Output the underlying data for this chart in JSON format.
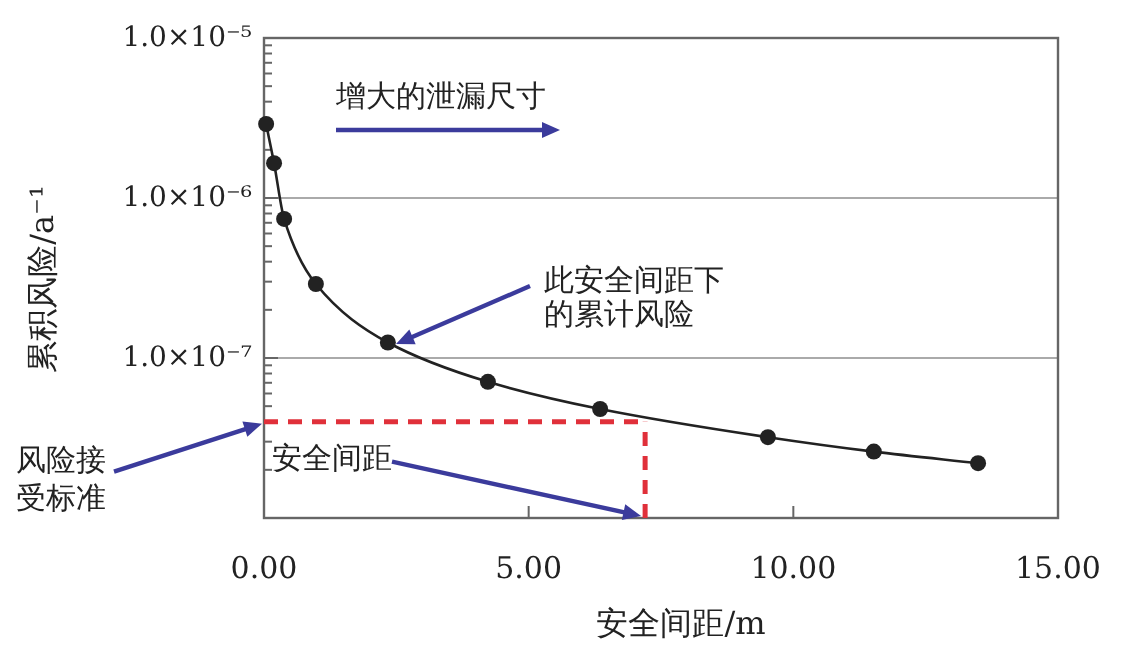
{
  "chart_data": {
    "type": "line",
    "xlabel": "安全间距/m",
    "ylabel": "累积风险/a⁻¹",
    "log": "y",
    "xlim": [
      0,
      15
    ],
    "ylim": [
      1e-08,
      1e-05
    ],
    "xticks": [
      {
        "value": 0,
        "label": "0.00"
      },
      {
        "value": 5,
        "label": "5.00"
      },
      {
        "value": 10,
        "label": "10.00"
      },
      {
        "value": 15,
        "label": "15.00"
      }
    ],
    "yticks": [
      {
        "value": 1e-05,
        "label": "1.0×10⁻⁵"
      },
      {
        "value": 1e-06,
        "label": "1.0×10⁻⁶"
      },
      {
        "value": 1e-07,
        "label": "1.0×10⁻⁷"
      }
    ],
    "grid": "y",
    "marker": "circle",
    "line_style": "solid",
    "series": [
      {
        "color": "#222222",
        "x": [
          0.04,
          0.19,
          0.38,
          0.98,
          2.34,
          4.23,
          6.35,
          9.52,
          11.52,
          13.49
        ],
        "values": [
          2.9e-06,
          1.65e-06,
          7.4e-07,
          2.9e-07,
          1.25e-07,
          7.1e-08,
          4.8e-08,
          3.2e-08,
          2.6e-08,
          2.2e-08
        ]
      }
    ],
    "ref_lines": [
      {
        "axis": "y",
        "value": 4e-08,
        "label": "风险接受标准",
        "color": "#e0303a",
        "line_style": "dashed"
      },
      {
        "axis": "x",
        "value": 7.2,
        "label": "安全间距",
        "color": "#e0303a",
        "line_style": "dashed"
      }
    ],
    "annotations": [
      "增大的泄漏尺寸",
      "此安全间距下的累计风险"
    ]
  }
}
